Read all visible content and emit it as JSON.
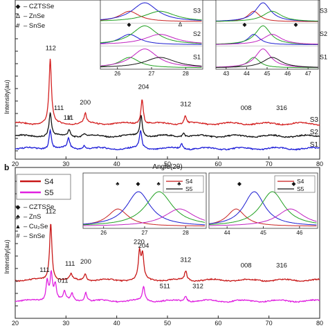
{
  "panels": [
    {
      "legend": [
        {
          "symbol": "◆",
          "label": "– CZTSSe"
        },
        {
          "symbol": "Δ",
          "label": "– ZnSe"
        },
        {
          "symbol": "#",
          "label": "– SnSe"
        }
      ]
    },
    {
      "letter": "b",
      "legend": [
        {
          "symbol": "◆",
          "label": "– CZTSSe"
        },
        {
          "symbol": "♣",
          "label": "– ZnS"
        },
        {
          "symbol": "▲",
          "label": "– Cu₂Se"
        },
        {
          "symbol": "#",
          "label": "– SnSe"
        }
      ]
    }
  ],
  "chart_data": [
    {
      "type": "line",
      "panel": "a",
      "xlabel": "Angle(2θ)",
      "ylabel": "Intensity(au)",
      "xlim": [
        20,
        80
      ],
      "xticks": [
        "20",
        "30",
        "40",
        "50",
        "60",
        "70",
        "80"
      ],
      "series": [
        {
          "name": "S1",
          "color": "#1f1fd8",
          "offset": 0,
          "peaks": [
            [
              26.9,
              1.0
            ],
            [
              30.5,
              0.5
            ],
            [
              33.6,
              0.2
            ],
            [
              44.7,
              0.9
            ],
            [
              52.8,
              0.25
            ]
          ]
        },
        {
          "name": "S2",
          "color": "#111111",
          "offset": 1,
          "peaks": [
            [
              26.9,
              1.2
            ],
            [
              30.6,
              0.35
            ],
            [
              33.6,
              0.15
            ],
            [
              44.8,
              1.1
            ],
            [
              53.2,
              0.2
            ]
          ]
        },
        {
          "name": "S3",
          "color": "#d42020",
          "offset": 2,
          "peaks": [
            [
              26.9,
              3.3
            ],
            [
              33.8,
              0.5
            ],
            [
              45.0,
              1.3
            ],
            [
              53.5,
              0.4
            ]
          ]
        }
      ],
      "annotations": [
        {
          "text": "112",
          "x": 27.0,
          "series": "S3"
        },
        {
          "text": "111",
          "x": 28.6,
          "series": "S3"
        },
        {
          "text": "200",
          "x": 33.8,
          "series": "S3"
        },
        {
          "text": "204",
          "x": 45.3,
          "series": "S3"
        },
        {
          "text": "312",
          "x": 53.6,
          "series": "S3"
        },
        {
          "text": "008",
          "x": 65.5,
          "series": "S3"
        },
        {
          "text": "316",
          "x": 72.5,
          "series": "S3"
        },
        {
          "text": "111",
          "x": 30.5,
          "series": "S2"
        },
        {
          "text": "#",
          "x": 30.6,
          "series": "S2"
        }
      ],
      "insets": [
        {
          "xticks": [
            "26",
            "27",
            "28"
          ],
          "rows": [
            "S3",
            "S2",
            "S1"
          ],
          "marks": [
            "◆",
            "Δ"
          ]
        },
        {
          "xticks": [
            "43",
            "44",
            "45",
            "46",
            "47"
          ],
          "rows": [
            "S3",
            "S2",
            "S1"
          ],
          "marks": [
            "◆",
            "◆"
          ]
        }
      ]
    },
    {
      "type": "line",
      "panel": "b",
      "ylabel": "Intensity(au)",
      "xlim": [
        20,
        80
      ],
      "xticks": [
        "20",
        "30",
        "40",
        "50",
        "60",
        "70",
        "80"
      ],
      "series": [
        {
          "name": "S4",
          "color": "#c81818",
          "offset": 1,
          "peaks": [
            [
              27.0,
              3.2
            ],
            [
              31.0,
              0.3
            ],
            [
              33.8,
              0.4
            ],
            [
              44.5,
              1.5
            ],
            [
              45.1,
              1.3
            ],
            [
              53.6,
              0.5
            ]
          ]
        },
        {
          "name": "S5",
          "color": "#e020e0",
          "offset": 0,
          "peaks": [
            [
              26.3,
              1.1
            ],
            [
              27.1,
              1.5
            ],
            [
              27.9,
              0.9
            ],
            [
              29.7,
              0.5
            ],
            [
              31.2,
              0.4
            ],
            [
              33.9,
              0.5
            ],
            [
              45.3,
              0.8
            ],
            [
              53.6,
              0.3
            ]
          ]
        }
      ],
      "annotations": [
        {
          "text": "112",
          "x": 27.0,
          "series": "S4"
        },
        {
          "text": "111",
          "x": 30.8,
          "series": "S4"
        },
        {
          "text": "200",
          "x": 33.9,
          "series": "S4"
        },
        {
          "text": "220",
          "x": 44.4,
          "series": "S4"
        },
        {
          "text": "204",
          "x": 45.3,
          "series": "S4"
        },
        {
          "text": "312",
          "x": 53.6,
          "series": "S4"
        },
        {
          "text": "008",
          "x": 65.5,
          "series": "S4"
        },
        {
          "text": "316",
          "x": 72.5,
          "series": "S4"
        },
        {
          "text": "111",
          "x": 25.8,
          "series": "S5"
        },
        {
          "text": "011",
          "x": 29.4,
          "series": "S5"
        },
        {
          "text": "511",
          "x": 49.5,
          "series": "S5"
        },
        {
          "text": "312",
          "x": 56.0,
          "series": "S5"
        }
      ],
      "insets": [
        {
          "xticks": [
            "26",
            "27",
            "28"
          ],
          "legend": [
            "S4",
            "S5"
          ],
          "marks": [
            "♣",
            "◆",
            "♣",
            "♣"
          ]
        },
        {
          "xticks": [
            "44",
            "45",
            "46"
          ],
          "legend": [
            "S4",
            "S5"
          ],
          "marks": [
            "◆",
            "◆"
          ]
        }
      ]
    }
  ]
}
